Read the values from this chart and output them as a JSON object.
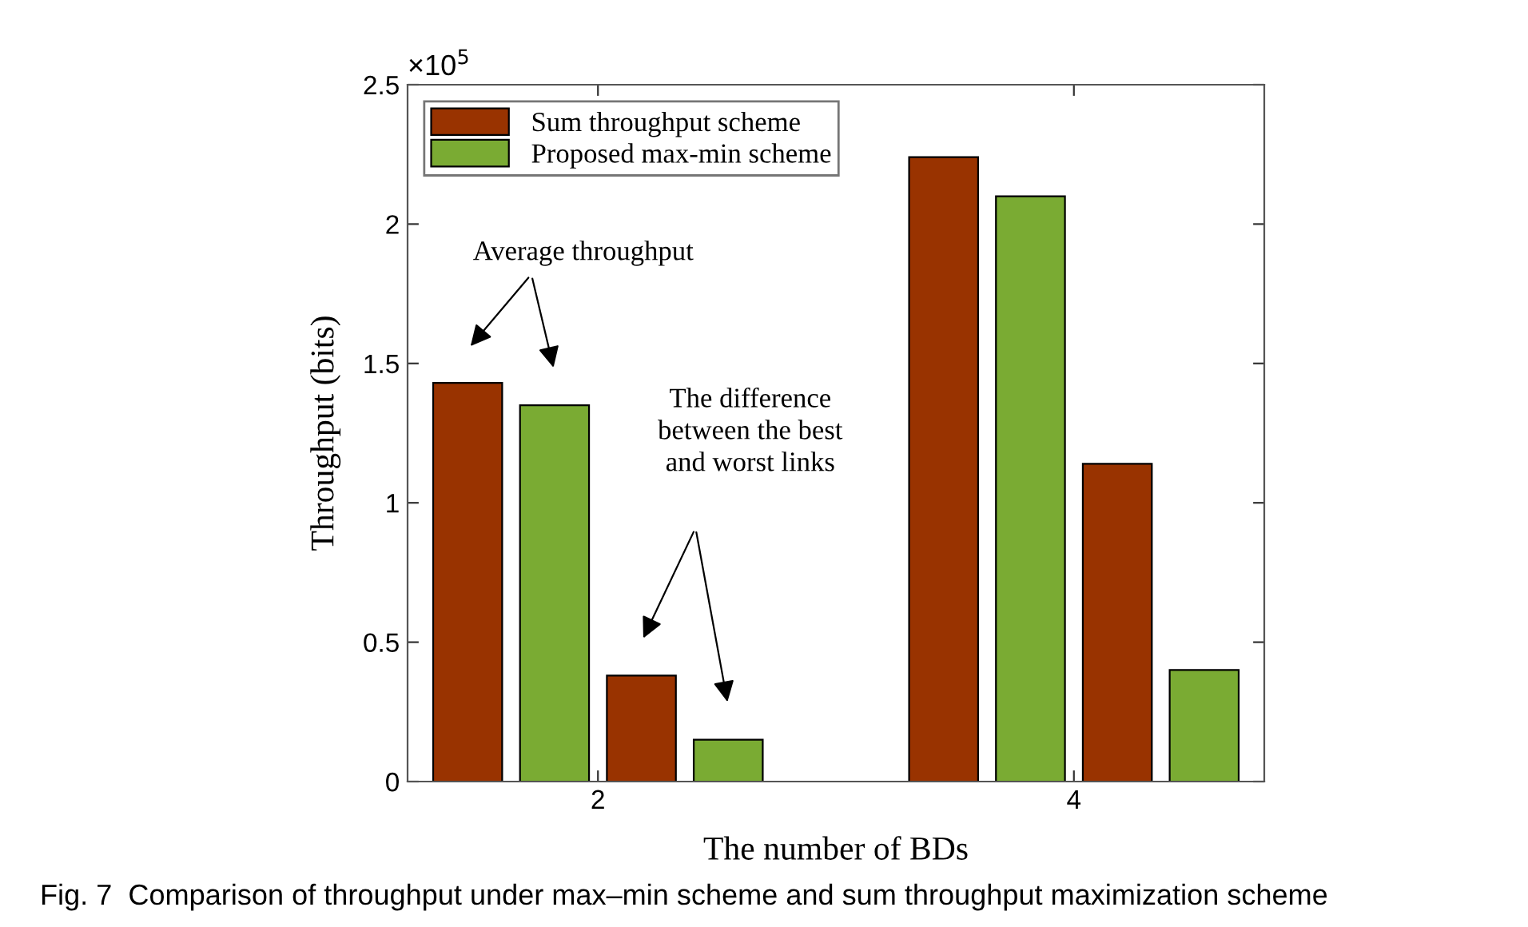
{
  "chart_data": {
    "type": "bar",
    "xlabel": "The number of BDs",
    "ylabel": "Throughput (bits)",
    "x": [
      2,
      4
    ],
    "xlim": [
      1.2,
      4.8
    ],
    "xticks": [
      2,
      4
    ],
    "ylim": [
      0,
      2.5
    ],
    "yticks": [
      0,
      0.5,
      1,
      1.5,
      2,
      2.5
    ],
    "series": [
      {
        "name": "Sum throughput scheme",
        "color": "#993300",
        "values": [
          1.43,
          2.24
        ]
      },
      {
        "name": "Proposed max-min scheme",
        "color": "#7aab33",
        "values": [
          1.35,
          2.1
        ]
      },
      {
        "color": "#993300",
        "values": [
          0.38,
          1.14
        ]
      },
      {
        "color": "#7aab33",
        "values": [
          0.15,
          0.4
        ]
      }
    ],
    "legend": "top left",
    "grid": false,
    "annotations": [
      "×10$^{5}$",
      "Average throughput",
      "The difference\nbetween the best\nand worst links",
      "Fig. 7  Comparison of throughput under max–min scheme and sum throughput maximization scheme"
    ]
  }
}
